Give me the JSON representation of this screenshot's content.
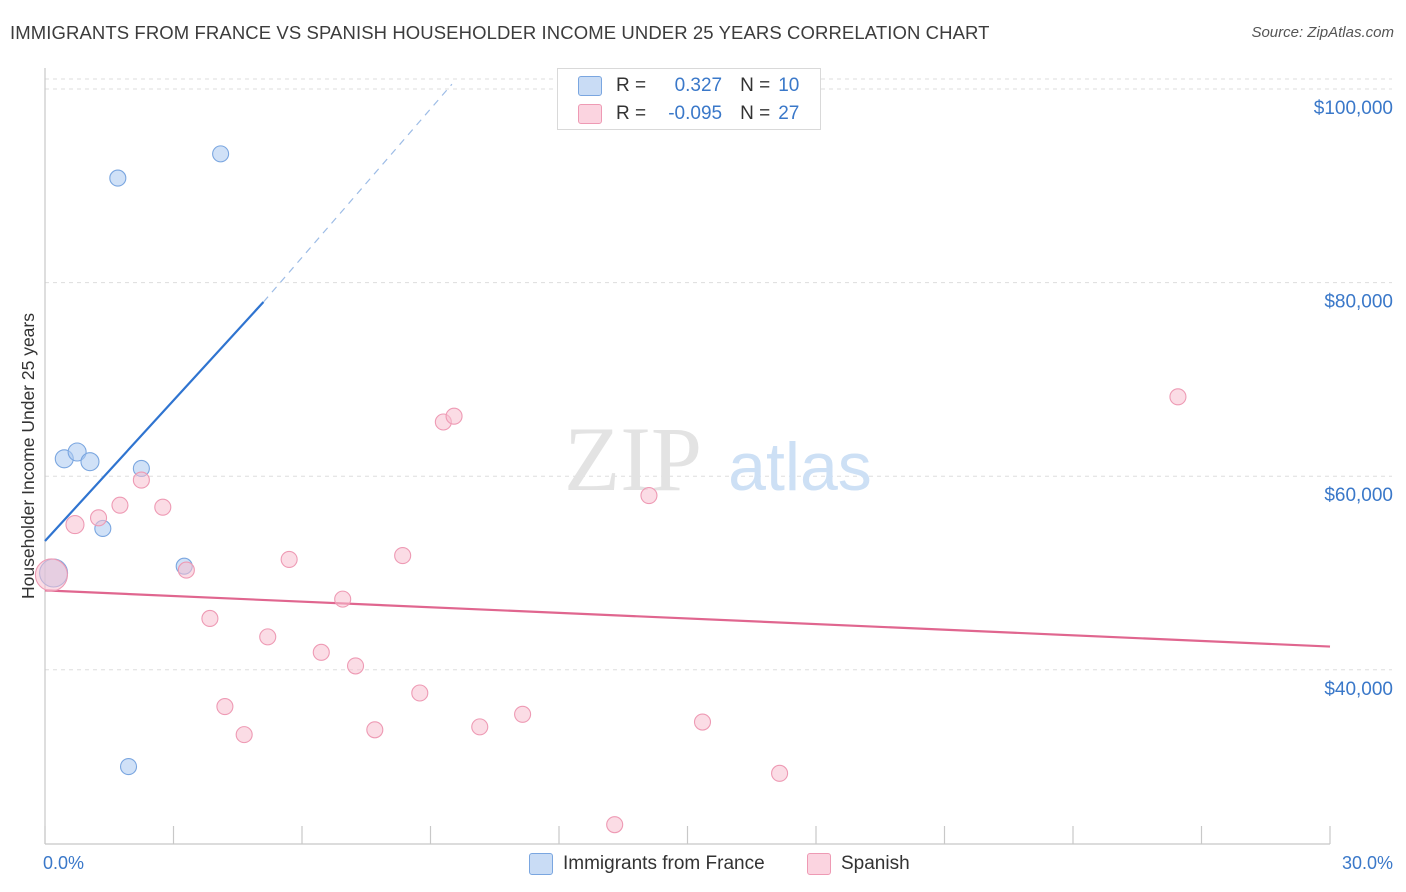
{
  "header": {
    "title": "IMMIGRANTS FROM FRANCE VS SPANISH HOUSEHOLDER INCOME UNDER 25 YEARS CORRELATION CHART",
    "source": "Source: ZipAtlas.com"
  },
  "watermark": {
    "zip": "ZIP",
    "atlas": "atlas"
  },
  "legend": {
    "rows": [
      {
        "r_label": "R =",
        "r_value": "0.327",
        "n_label": "N =",
        "n_value": "10",
        "color": "#a9c8f0",
        "border": "#7aa6e0"
      },
      {
        "r_label": "R =",
        "r_value": "-0.095",
        "n_label": "N =",
        "n_value": "27",
        "color": "#f8bfd0",
        "border": "#ee9ab4"
      }
    ]
  },
  "bottom_legend": [
    {
      "label": "Immigrants from France",
      "color": "#a9c8f0"
    },
    {
      "label": "Spanish",
      "color": "#f8bfd0"
    }
  ],
  "chart_data": {
    "type": "scatter",
    "title": "IMMIGRANTS FROM FRANCE VS SPANISH HOUSEHOLDER INCOME UNDER 25 YEARS CORRELATION CHART",
    "xlabel": "",
    "ylabel": "Householder Income Under 25 years",
    "xlim": [
      0,
      30
    ],
    "ylim": [
      22000,
      103000
    ],
    "x_tick_labels": [
      {
        "value": 0,
        "label": "0.0%"
      },
      {
        "value": 30,
        "label": "30.0%"
      }
    ],
    "y_ticks": [
      {
        "value": 40000,
        "label": "$40,000"
      },
      {
        "value": 60000,
        "label": "$60,000"
      },
      {
        "value": 80000,
        "label": "$80,000"
      },
      {
        "value": 100000,
        "label": "$100,000"
      }
    ],
    "grid": true,
    "series": [
      {
        "name": "Immigrants from France",
        "color": "#a9c8f0",
        "stroke": "#7aa6e0",
        "line_color": "#2f74d0",
        "trend": {
          "x0": 0,
          "y0": 53300,
          "x1": 5.1,
          "y1": 78000,
          "dash_to_x": 9.5,
          "dash_to_y": 100500
        },
        "points": [
          {
            "x": 0.2,
            "y": 50000,
            "size": 14
          },
          {
            "x": 0.45,
            "y": 61800,
            "size": 9
          },
          {
            "x": 0.75,
            "y": 62500,
            "size": 9
          },
          {
            "x": 1.05,
            "y": 61500,
            "size": 9
          },
          {
            "x": 1.35,
            "y": 54600,
            "size": 8
          },
          {
            "x": 1.7,
            "y": 90800,
            "size": 8
          },
          {
            "x": 1.95,
            "y": 30000,
            "size": 8
          },
          {
            "x": 2.25,
            "y": 60800,
            "size": 8
          },
          {
            "x": 3.25,
            "y": 50700,
            "size": 8
          },
          {
            "x": 4.1,
            "y": 93300,
            "size": 8
          }
        ]
      },
      {
        "name": "Spanish",
        "color": "#f8bfd0",
        "stroke": "#ee9ab4",
        "line_color": "#e0668f",
        "trend": {
          "x0": 0,
          "y0": 48200,
          "x1": 30,
          "y1": 42400
        },
        "points": [
          {
            "x": 0.15,
            "y": 49800,
            "size": 16
          },
          {
            "x": 0.7,
            "y": 55000,
            "size": 9
          },
          {
            "x": 1.25,
            "y": 55700,
            "size": 8
          },
          {
            "x": 1.75,
            "y": 57000,
            "size": 8
          },
          {
            "x": 2.25,
            "y": 59600,
            "size": 8
          },
          {
            "x": 2.75,
            "y": 56800,
            "size": 8
          },
          {
            "x": 3.3,
            "y": 50300,
            "size": 8
          },
          {
            "x": 3.85,
            "y": 45300,
            "size": 8
          },
          {
            "x": 4.2,
            "y": 36200,
            "size": 8
          },
          {
            "x": 4.65,
            "y": 33300,
            "size": 8
          },
          {
            "x": 5.2,
            "y": 43400,
            "size": 8
          },
          {
            "x": 5.7,
            "y": 51400,
            "size": 8
          },
          {
            "x": 6.45,
            "y": 41800,
            "size": 8
          },
          {
            "x": 6.95,
            "y": 47300,
            "size": 8
          },
          {
            "x": 7.25,
            "y": 40400,
            "size": 8
          },
          {
            "x": 7.7,
            "y": 33800,
            "size": 8
          },
          {
            "x": 8.35,
            "y": 51800,
            "size": 8
          },
          {
            "x": 8.75,
            "y": 37600,
            "size": 8
          },
          {
            "x": 9.3,
            "y": 65600,
            "size": 8
          },
          {
            "x": 9.55,
            "y": 66200,
            "size": 8
          },
          {
            "x": 10.15,
            "y": 34100,
            "size": 8
          },
          {
            "x": 11.15,
            "y": 35400,
            "size": 8
          },
          {
            "x": 13.3,
            "y": 24000,
            "size": 8
          },
          {
            "x": 14.1,
            "y": 58000,
            "size": 8
          },
          {
            "x": 15.35,
            "y": 34600,
            "size": 8
          },
          {
            "x": 17.15,
            "y": 29300,
            "size": 8
          },
          {
            "x": 26.45,
            "y": 68200,
            "size": 8
          }
        ]
      }
    ]
  }
}
